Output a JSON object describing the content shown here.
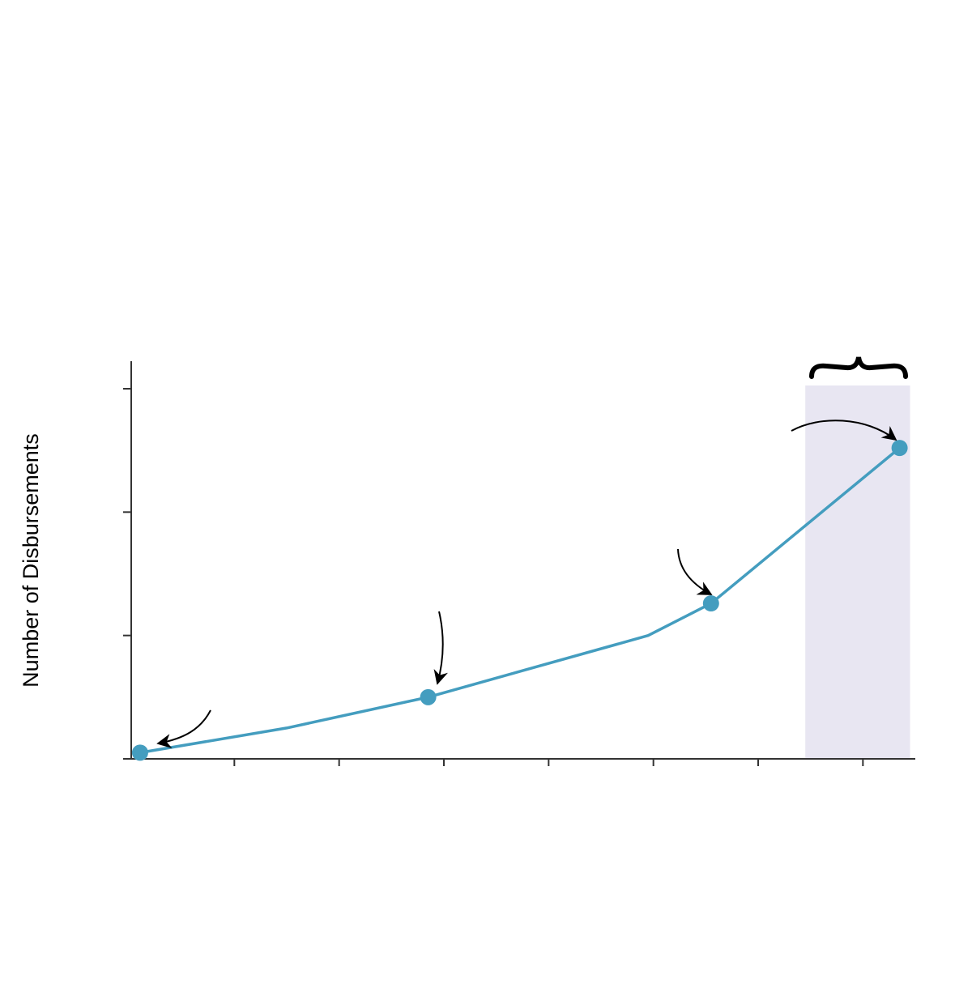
{
  "chart_data": {
    "type": "line",
    "ylabel": "Number of Disbursements",
    "xlabel": "",
    "title": "",
    "x": [
      0.1,
      1.5,
      2.85,
      4.95,
      5.55,
      7.35
    ],
    "y": [
      0.05,
      0.25,
      0.5,
      1.0,
      1.26,
      2.52
    ],
    "xlim": [
      0,
      7.5
    ],
    "ylim": [
      0,
      3.0
    ],
    "x_ticks": [
      1,
      2,
      3,
      4,
      5,
      6,
      7
    ],
    "y_ticks": [
      0,
      1,
      2,
      3
    ],
    "highlight_span": {
      "x_from": 6.45,
      "x_to": 7.45
    },
    "marked_points": [
      0,
      2,
      4,
      5
    ],
    "grid": false,
    "colors": {
      "line": "#449dbf",
      "highlight": "#e8e6f2",
      "axis": "#333333",
      "annotation": "#000000"
    }
  }
}
